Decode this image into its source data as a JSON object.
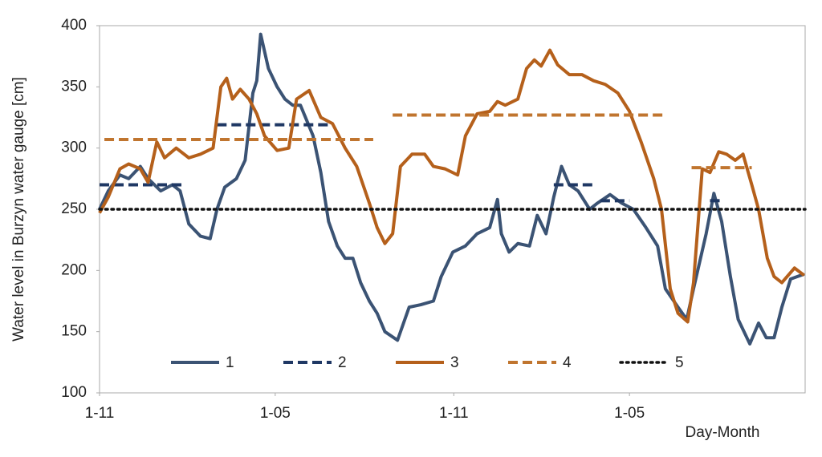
{
  "chart_data": {
    "type": "line",
    "ylabel": "Water level in Burzyn water gauge [cm]",
    "xlabel": "Day-Month",
    "xlim": [
      0,
      727
    ],
    "ylim": [
      100,
      400
    ],
    "xticks": [
      {
        "value": 0,
        "label": "1-11"
      },
      {
        "value": 181,
        "label": "1-05"
      },
      {
        "value": 365,
        "label": "1-11"
      },
      {
        "value": 546,
        "label": "1-05"
      }
    ],
    "yticks": [
      100,
      150,
      200,
      250,
      300,
      350,
      400
    ],
    "grid": false,
    "legend": "bottom",
    "series": [
      {
        "name": "1",
        "color": "#3b5374",
        "style": "solid",
        "x": [
          0,
          9,
          21,
          30,
          42,
          50,
          63,
          75,
          83,
          92,
          104,
          114,
          121,
          129,
          141,
          150,
          158,
          162,
          166,
          174,
          183,
          191,
          199,
          207,
          220,
          228,
          236,
          245,
          253,
          261,
          269,
          278,
          286,
          294,
          307,
          319,
          331,
          344,
          352,
          364,
          377,
          389,
          402,
          410,
          414,
          422,
          431,
          443,
          451,
          460,
          468,
          476,
          484,
          493,
          505,
          513,
          526,
          538,
          550,
          563,
          575,
          583,
          596,
          605,
          612,
          625,
          633,
          641,
          650,
          658,
          670,
          679,
          687,
          695,
          703,
          712,
          726
        ],
        "values": [
          250,
          265,
          278,
          275,
          285,
          275,
          265,
          270,
          265,
          238,
          228,
          226,
          250,
          268,
          275,
          290,
          345,
          355,
          393,
          365,
          350,
          340,
          335,
          335,
          310,
          280,
          240,
          220,
          210,
          210,
          190,
          175,
          165,
          150,
          143,
          170,
          172,
          175,
          195,
          215,
          220,
          230,
          235,
          258,
          230,
          215,
          222,
          220,
          245,
          230,
          260,
          285,
          270,
          265,
          250,
          255,
          262,
          255,
          250,
          235,
          220,
          185,
          170,
          160,
          185,
          230,
          263,
          240,
          195,
          160,
          140,
          157,
          145,
          145,
          170,
          193,
          197
        ]
      },
      {
        "name": "2",
        "color": "#1f3864",
        "style": "dashed",
        "x": [
          0,
          88,
          100,
          121,
          240,
          300,
          468,
          509,
          512,
          516,
          546,
          600,
          629,
          641
        ],
        "values": [
          270,
          270,
          null,
          319,
          319,
          null,
          270,
          270,
          null,
          257,
          257,
          null,
          257,
          257
        ]
      },
      {
        "name": "3",
        "color": "#b5601b",
        "style": "solid",
        "x": [
          0,
          9,
          21,
          30,
          42,
          50,
          59,
          67,
          79,
          92,
          104,
          117,
          125,
          131,
          137,
          145,
          154,
          162,
          170,
          183,
          195,
          203,
          216,
          228,
          240,
          253,
          265,
          278,
          286,
          294,
          302,
          310,
          322,
          335,
          344,
          356,
          369,
          377,
          389,
          402,
          410,
          418,
          431,
          440,
          448,
          455,
          464,
          472,
          484,
          497,
          509,
          521,
          534,
          546,
          558,
          571,
          579,
          588,
          596,
          606,
          612,
          621,
          629,
          638,
          646,
          655,
          663,
          672,
          679,
          688,
          695,
          703,
          716,
          726
        ],
        "values": [
          247,
          260,
          283,
          287,
          283,
          272,
          305,
          292,
          300,
          292,
          295,
          300,
          350,
          357,
          340,
          348,
          340,
          328,
          310,
          298,
          300,
          340,
          347,
          325,
          320,
          300,
          285,
          255,
          235,
          222,
          230,
          285,
          295,
          295,
          285,
          283,
          278,
          310,
          328,
          330,
          338,
          335,
          340,
          365,
          372,
          367,
          380,
          368,
          360,
          360,
          355,
          352,
          345,
          330,
          305,
          275,
          250,
          185,
          165,
          158,
          190,
          283,
          280,
          297,
          295,
          290,
          295,
          270,
          250,
          210,
          195,
          190,
          202,
          196
        ]
      },
      {
        "name": "4",
        "color": "#c0752f",
        "style": "dashed",
        "x": [
          5,
          282,
          292,
          302,
          582,
          596,
          610,
          672
        ],
        "values": [
          307,
          307,
          null,
          327,
          327,
          null,
          284,
          284
        ]
      },
      {
        "name": "5",
        "color": "#111111",
        "style": "dotted",
        "x": [
          0,
          727
        ],
        "values": [
          250,
          250
        ]
      }
    ]
  }
}
